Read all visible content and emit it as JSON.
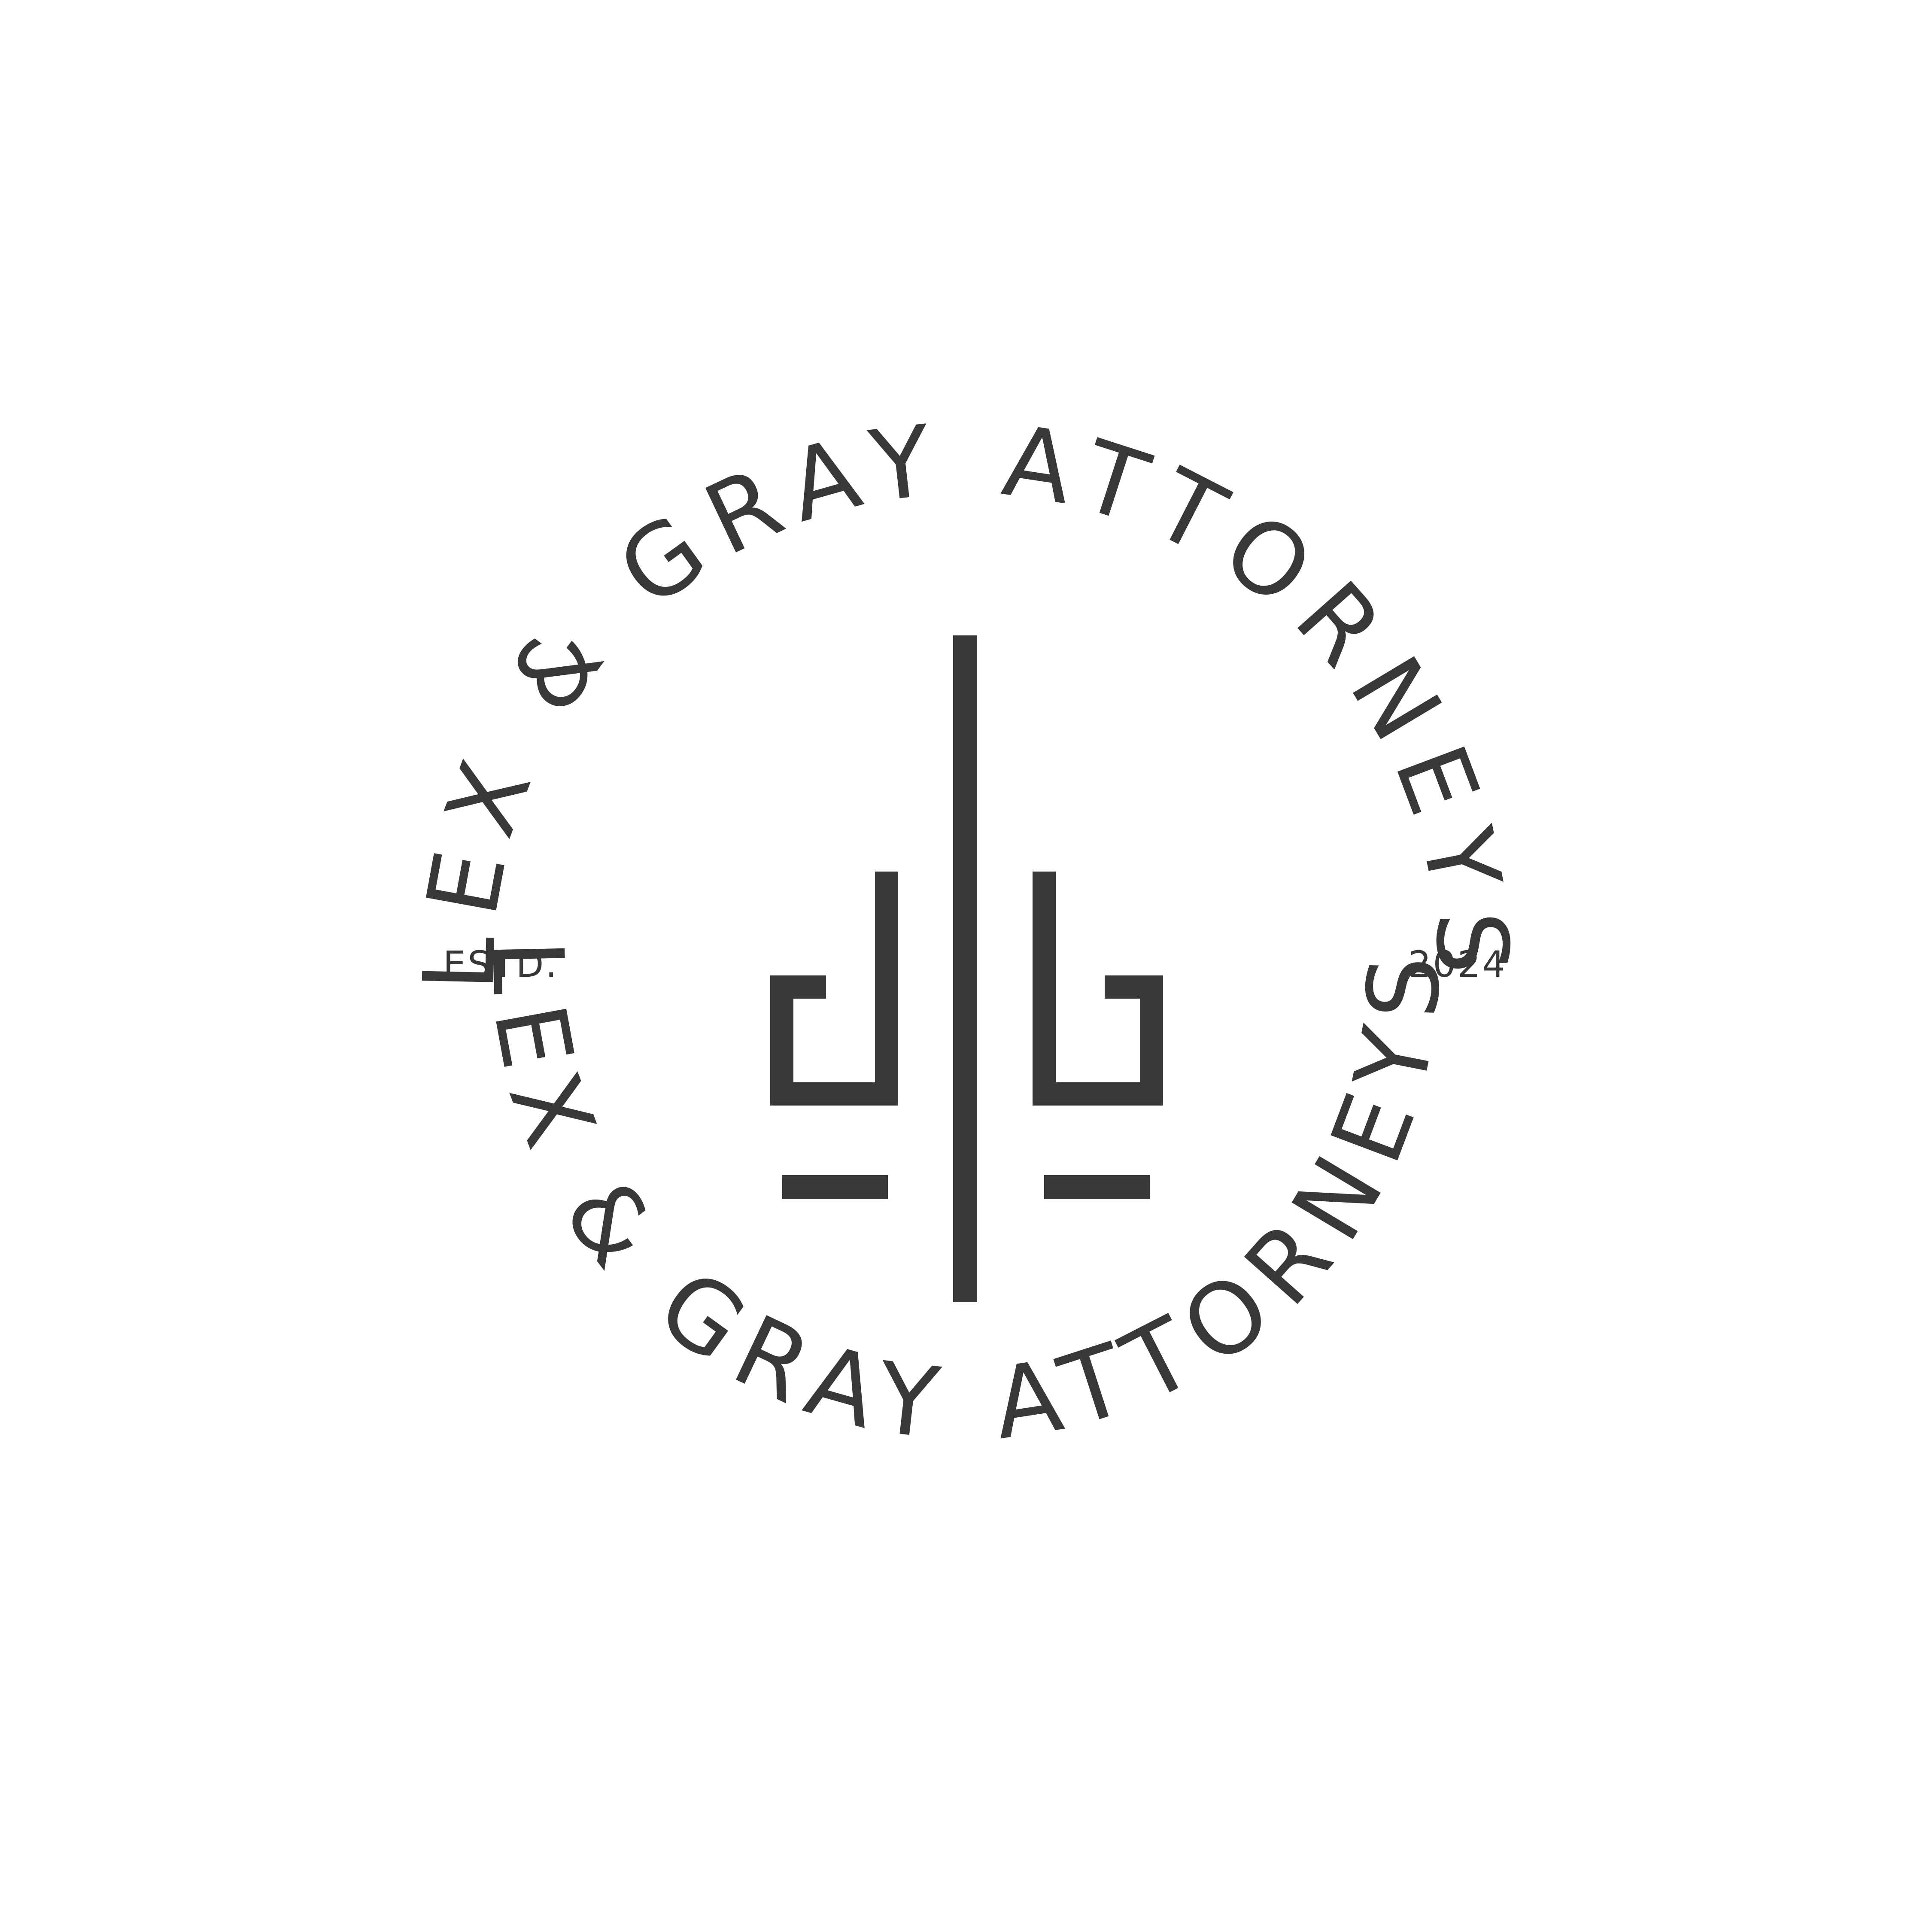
{
  "brand": {
    "name": "LEX & GRAY ATTORNEYS",
    "estd_label": "ESTD.",
    "year": "2024",
    "monogram_icon": "lg-columns-monogram-icon",
    "colors": {
      "ink": "#383838",
      "background": "#ffffff"
    }
  }
}
